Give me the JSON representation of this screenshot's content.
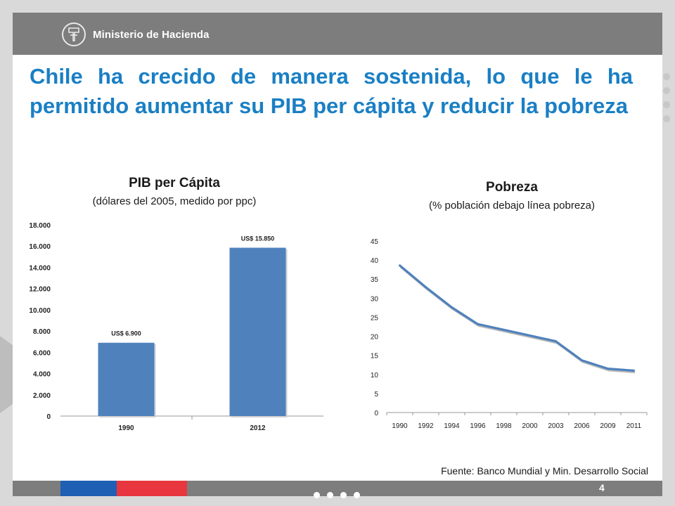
{
  "header": {
    "brand": "Ministerio de Hacienda"
  },
  "slide": {
    "title": "Chile ha crecido de manera sostenida, lo que le ha permitido aumentar su PIB per cápita y reducir la pobreza",
    "page_number": "4",
    "source": "Fuente: Banco Mundial y Min. Desarrollo Social"
  },
  "charts": {
    "pib": {
      "title": "PIB per Cápita",
      "subtitle": "(dólares del 2005, medido por ppc)"
    },
    "pobreza": {
      "title": "Pobreza",
      "subtitle": "(% población debajo línea pobreza)"
    }
  },
  "colors": {
    "accent": "#1a7fc4",
    "bar": "#4f81bd",
    "line": "#4f81bd",
    "header": "#7d7d7d"
  },
  "chart_data": [
    {
      "type": "bar",
      "title": "PIB per Cápita",
      "subtitle": "(dólares del 2005, medido por ppc)",
      "categories": [
        "1990",
        "2012"
      ],
      "values": [
        6900,
        15850
      ],
      "data_labels": [
        "US$ 6.900",
        "US$ 15.850"
      ],
      "ylim": [
        0,
        18000
      ],
      "yticks": [
        0,
        2000,
        4000,
        6000,
        8000,
        10000,
        12000,
        14000,
        16000,
        18000
      ],
      "ytick_labels": [
        "0",
        "2.000",
        "4.000",
        "6.000",
        "8.000",
        "10.000",
        "12.000",
        "14.000",
        "16.000",
        "18.000"
      ],
      "grid": false
    },
    {
      "type": "line",
      "title": "Pobreza",
      "subtitle": "(% población debajo línea pobreza)",
      "x": [
        "1990",
        "1992",
        "1994",
        "1996",
        "1998",
        "2000",
        "2003",
        "2006",
        "2009",
        "2011"
      ],
      "values": [
        38.6,
        32.9,
        27.6,
        23.2,
        21.7,
        20.2,
        18.7,
        13.7,
        11.5,
        11.0
      ],
      "ylim": [
        0,
        45
      ],
      "yticks": [
        0,
        5,
        10,
        15,
        20,
        25,
        30,
        35,
        40,
        45
      ],
      "grid": false
    }
  ]
}
